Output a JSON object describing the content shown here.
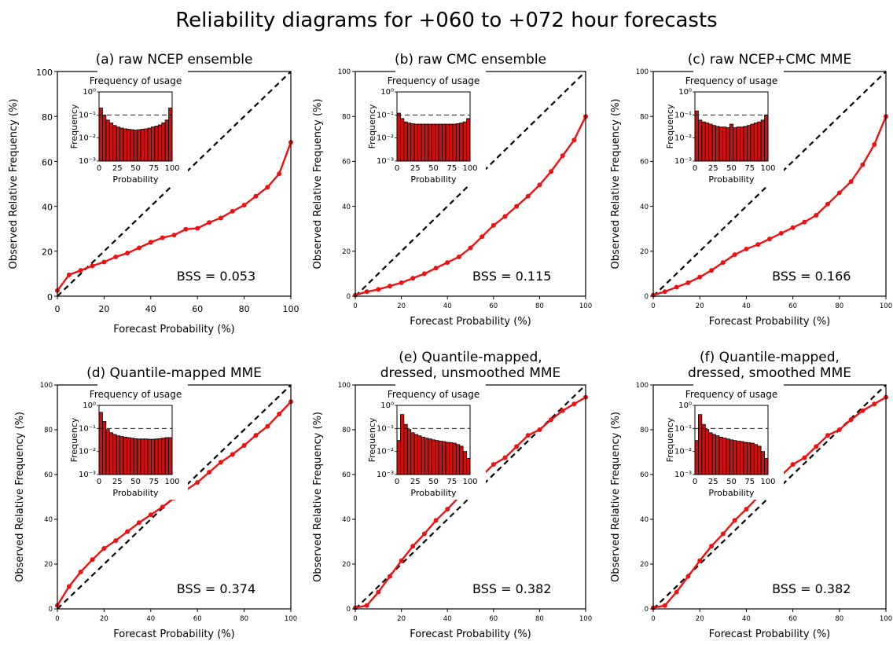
{
  "figure_title": "Reliability diagrams for +060 to +072 hour forecasts",
  "chart_data": [
    {
      "type": "line",
      "title": "(a) raw NCEP ensemble",
      "xlabel": "Forecast Probability (%)",
      "ylabel": "Observed Relative Frequency (%)",
      "xlim": [
        0,
        100
      ],
      "ylim": [
        0,
        100
      ],
      "xticks": [
        "0",
        "20",
        "40",
        "60",
        "80",
        "100"
      ],
      "yticks": [
        "0",
        "20",
        "40",
        "60",
        "80",
        "100"
      ],
      "series": [
        {
          "x": [
            0,
            5,
            10,
            15,
            20,
            25,
            30,
            35,
            40,
            45,
            50,
            55,
            60,
            65,
            70,
            75,
            80,
            85,
            90,
            95,
            100
          ],
          "values": [
            2.5,
            9.5,
            11.5,
            13.5,
            15.2,
            17.5,
            19.2,
            21.5,
            24,
            26,
            27.2,
            29.8,
            30.2,
            32.8,
            34.8,
            37.8,
            40.5,
            44.5,
            48.5,
            54.5,
            68.5
          ]
        }
      ],
      "reference_line": "diagonal",
      "annotation": "BSS = 0.053",
      "inset": {
        "title": "Frequency of usage",
        "xlabel": "Probability",
        "ylabel": "Frequency",
        "yscale": "log",
        "ylim": [
          0.001,
          1
        ],
        "yticks": [
          "10⁻³",
          "10⁻²",
          "10⁻¹",
          "10⁰"
        ],
        "xticks": [
          "0",
          "25",
          "50",
          "75",
          "100"
        ],
        "x": [
          0,
          5,
          10,
          15,
          20,
          25,
          30,
          35,
          40,
          45,
          50,
          55,
          60,
          65,
          70,
          75,
          80,
          85,
          90,
          95,
          100
        ],
        "values": [
          0.2,
          0.1,
          0.06,
          0.045,
          0.035,
          0.03,
          0.027,
          0.025,
          0.024,
          0.023,
          0.022,
          0.023,
          0.024,
          0.025,
          0.027,
          0.03,
          0.033,
          0.037,
          0.045,
          0.06,
          0.2
        ],
        "reference_level": 0.1
      }
    },
    {
      "type": "line",
      "title": "(b) raw CMC ensemble",
      "xlabel": "Forecast Probability (%)",
      "ylabel": "Observed Relative Frequency (%)",
      "xlim": [
        0,
        100
      ],
      "ylim": [
        0,
        100
      ],
      "xticks": [
        "0",
        "20",
        "40",
        "60",
        "80",
        "100"
      ],
      "yticks": [
        "0",
        "20",
        "40",
        "60",
        "80",
        "100"
      ],
      "series": [
        {
          "x": [
            0,
            5,
            10,
            15,
            20,
            25,
            30,
            35,
            40,
            45,
            50,
            55,
            60,
            65,
            70,
            75,
            80,
            85,
            90,
            95,
            100
          ],
          "values": [
            0.5,
            2,
            3,
            4.5,
            6,
            8,
            10,
            12.5,
            15,
            17.5,
            21.5,
            26.5,
            31.5,
            35.5,
            40,
            44.5,
            49.5,
            55.5,
            62.5,
            69.5,
            80
          ]
        }
      ],
      "reference_line": "diagonal",
      "annotation": "BSS = 0.115",
      "inset": {
        "title": "Frequency of usage",
        "xlabel": "Probability",
        "ylabel": "Frequency",
        "yscale": "log",
        "ylim": [
          0.001,
          1
        ],
        "yticks": [
          "10⁻³",
          "10⁻²",
          "10⁻¹",
          "10⁰"
        ],
        "xticks": [
          "0",
          "25",
          "50",
          "75",
          "100"
        ],
        "x": [
          0,
          5,
          10,
          15,
          20,
          25,
          30,
          35,
          40,
          45,
          50,
          55,
          60,
          65,
          70,
          75,
          80,
          85,
          90,
          95,
          100
        ],
        "values": [
          0.12,
          0.07,
          0.05,
          0.045,
          0.042,
          0.04,
          0.04,
          0.04,
          0.04,
          0.04,
          0.04,
          0.04,
          0.04,
          0.04,
          0.04,
          0.04,
          0.04,
          0.042,
          0.045,
          0.05,
          0.07
        ],
        "reference_level": 0.1
      }
    },
    {
      "type": "line",
      "title": "(c) raw NCEP+CMC MME",
      "xlabel": "Forecast Probability (%)",
      "ylabel": "Observed Relative Frequency (%)",
      "xlim": [
        0,
        100
      ],
      "ylim": [
        0,
        100
      ],
      "xticks": [
        "0",
        "20",
        "40",
        "60",
        "80",
        "100"
      ],
      "yticks": [
        "0",
        "20",
        "40",
        "60",
        "80",
        "100"
      ],
      "series": [
        {
          "x": [
            0,
            5,
            10,
            15,
            20,
            25,
            30,
            35,
            40,
            45,
            50,
            55,
            60,
            65,
            70,
            75,
            80,
            85,
            90,
            95,
            100
          ],
          "values": [
            0.5,
            2,
            4,
            6,
            8.5,
            11.5,
            15,
            18.5,
            21,
            23,
            25.5,
            28,
            30.5,
            33,
            36,
            41,
            46,
            51,
            58.5,
            67.5,
            80
          ]
        }
      ],
      "reference_line": "diagonal",
      "annotation": "BSS = 0.166",
      "inset": {
        "title": "Frequency of usage",
        "xlabel": "Probability",
        "ylabel": "Frequency",
        "yscale": "log",
        "ylim": [
          0.001,
          1
        ],
        "yticks": [
          "10⁻³",
          "10⁻²",
          "10⁻¹",
          "10⁰"
        ],
        "xticks": [
          "0",
          "25",
          "50",
          "75",
          "100"
        ],
        "x": [
          0,
          5,
          10,
          15,
          20,
          25,
          30,
          35,
          40,
          45,
          50,
          55,
          60,
          65,
          70,
          75,
          80,
          85,
          90,
          95,
          100
        ],
        "values": [
          0.15,
          0.06,
          0.05,
          0.045,
          0.04,
          0.035,
          0.032,
          0.03,
          0.03,
          0.028,
          0.04,
          0.028,
          0.03,
          0.03,
          0.032,
          0.035,
          0.04,
          0.045,
          0.05,
          0.06,
          0.1
        ],
        "reference_level": 0.1
      }
    },
    {
      "type": "line",
      "title": "(d) Quantile-mapped MME",
      "xlabel": "Forecast Probability (%)",
      "ylabel": "Observed Relative Frequency (%)",
      "xlim": [
        0,
        100
      ],
      "ylim": [
        0,
        100
      ],
      "xticks": [
        "0",
        "20",
        "40",
        "60",
        "80",
        "100"
      ],
      "yticks": [
        "0",
        "20",
        "40",
        "60",
        "80",
        "100"
      ],
      "series": [
        {
          "x": [
            0,
            5,
            10,
            15,
            20,
            25,
            30,
            35,
            40,
            45,
            50,
            55,
            60,
            65,
            70,
            75,
            80,
            85,
            90,
            95,
            100
          ],
          "values": [
            1.5,
            10,
            16.5,
            22,
            27,
            30.5,
            34.5,
            38.5,
            42,
            45.5,
            49.5,
            53,
            56.5,
            61,
            65.5,
            69,
            73,
            77.5,
            81.5,
            87,
            92.5
          ]
        }
      ],
      "reference_line": "diagonal",
      "annotation": "BSS = 0.374",
      "inset": {
        "title": "Frequency of usage",
        "xlabel": "Probability",
        "ylabel": "Frequency",
        "yscale": "log",
        "ylim": [
          0.001,
          1
        ],
        "yticks": [
          "10⁻³",
          "10⁻²",
          "10⁻¹",
          "10⁰"
        ],
        "xticks": [
          "0",
          "25",
          "50",
          "75",
          "100"
        ],
        "x": [
          0,
          5,
          10,
          15,
          20,
          25,
          30,
          35,
          40,
          45,
          50,
          55,
          60,
          65,
          70,
          75,
          80,
          85,
          90,
          95,
          100
        ],
        "values": [
          0.5,
          0.2,
          0.09,
          0.065,
          0.055,
          0.048,
          0.045,
          0.042,
          0.04,
          0.038,
          0.036,
          0.035,
          0.035,
          0.035,
          0.034,
          0.034,
          0.035,
          0.036,
          0.038,
          0.04,
          0.04
        ],
        "reference_level": 0.1
      }
    },
    {
      "type": "line",
      "title": "(e) Quantile-mapped, dressed, unsmoothed MME",
      "xlabel": "Forecast Probability (%)",
      "ylabel": "Observed Relative Frequency (%)",
      "xlim": [
        0,
        100
      ],
      "ylim": [
        0,
        100
      ],
      "xticks": [
        "0",
        "20",
        "40",
        "60",
        "80",
        "100"
      ],
      "yticks": [
        "0",
        "20",
        "40",
        "60",
        "80",
        "100"
      ],
      "series": [
        {
          "x": [
            0,
            5,
            10,
            15,
            20,
            25,
            30,
            35,
            40,
            45,
            50,
            55,
            60,
            65,
            70,
            75,
            80,
            85,
            90,
            95,
            100
          ],
          "values": [
            0.5,
            1.5,
            7.5,
            14.5,
            21.5,
            28,
            33.5,
            39.5,
            44.5,
            50,
            55,
            59.5,
            64.5,
            67.5,
            72.5,
            77.5,
            80,
            84.5,
            88.5,
            91.5,
            94.5
          ]
        }
      ],
      "reference_line": "diagonal",
      "annotation": "BSS = 0.382",
      "inset": {
        "title": "Frequency of usage",
        "xlabel": "Probability",
        "ylabel": "Frequency",
        "yscale": "log",
        "ylim": [
          0.001,
          1
        ],
        "yticks": [
          "10⁻³",
          "10⁻²",
          "10⁻¹",
          "10⁰"
        ],
        "xticks": [
          "0",
          "25",
          "50",
          "75",
          "100"
        ],
        "x": [
          0,
          5,
          10,
          15,
          20,
          25,
          30,
          35,
          40,
          45,
          50,
          55,
          60,
          65,
          70,
          75,
          80,
          85,
          90,
          95,
          100
        ],
        "values": [
          0.03,
          0.4,
          0.15,
          0.09,
          0.065,
          0.055,
          0.048,
          0.042,
          0.038,
          0.035,
          0.032,
          0.03,
          0.028,
          0.027,
          0.025,
          0.024,
          0.023,
          0.02,
          0.017,
          0.01,
          0.005
        ],
        "reference_level": 0.1
      }
    },
    {
      "type": "line",
      "title": "(f) Quantile-mapped, dressed, smoothed MME",
      "xlabel": "Forecast Probability (%)",
      "ylabel": "Observed Relative Frequency (%)",
      "xlim": [
        0,
        100
      ],
      "ylim": [
        0,
        100
      ],
      "xticks": [
        "0",
        "20",
        "40",
        "60",
        "80",
        "100"
      ],
      "yticks": [
        "0",
        "20",
        "40",
        "60",
        "80",
        "100"
      ],
      "series": [
        {
          "x": [
            0,
            5,
            10,
            15,
            20,
            25,
            30,
            35,
            40,
            45,
            50,
            55,
            60,
            65,
            70,
            75,
            80,
            85,
            90,
            95,
            100
          ],
          "values": [
            0.5,
            1.5,
            7.5,
            14.5,
            21.5,
            28,
            33.5,
            39.5,
            44.5,
            50,
            55,
            59.5,
            64.5,
            67.5,
            72.5,
            77.5,
            80,
            84.5,
            88.5,
            91.5,
            94.5
          ]
        }
      ],
      "reference_line": "diagonal",
      "annotation": "BSS = 0.382",
      "inset": {
        "title": "Frequency of usage",
        "xlabel": "Probability",
        "ylabel": "Frequency",
        "yscale": "log",
        "ylim": [
          0.001,
          1
        ],
        "yticks": [
          "10⁻³",
          "10⁻²",
          "10⁻¹",
          "10⁰"
        ],
        "xticks": [
          "0",
          "25",
          "50",
          "75",
          "100"
        ],
        "x": [
          0,
          5,
          10,
          15,
          20,
          25,
          30,
          35,
          40,
          45,
          50,
          55,
          60,
          65,
          70,
          75,
          80,
          85,
          90,
          95,
          100
        ],
        "values": [
          0.03,
          0.4,
          0.15,
          0.09,
          0.065,
          0.055,
          0.048,
          0.042,
          0.038,
          0.035,
          0.032,
          0.03,
          0.028,
          0.027,
          0.025,
          0.024,
          0.023,
          0.02,
          0.017,
          0.01,
          0.005
        ],
        "reference_level": 0.1
      }
    }
  ],
  "colors": {
    "series": "#ee1111",
    "bar_fill": "#cc1111",
    "bar_edge": "#000000",
    "reference": "#000000"
  }
}
